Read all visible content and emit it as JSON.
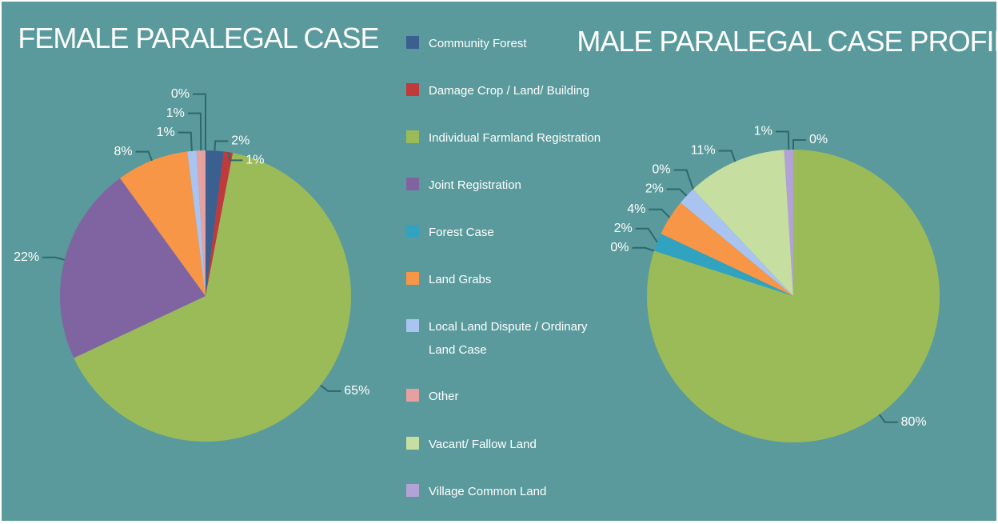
{
  "legend": [
    {
      "name": "Community Forest",
      "color": "#3b5f8f"
    },
    {
      "name": "Damage Crop / Land/ Building",
      "color": "#c0393b"
    },
    {
      "name": "Individual Farmland Registration",
      "color": "#9bbb59"
    },
    {
      "name": "Joint Registration",
      "color": "#8064a2"
    },
    {
      "name": "Forest Case",
      "color": "#31a2c0"
    },
    {
      "name": "Land Grabs",
      "color": "#f79646"
    },
    {
      "name": "Local Land Dispute / Ordinary Land Case",
      "color": "#a9c4f0"
    },
    {
      "name": "Other",
      "color": "#e6a0a0"
    },
    {
      "name": "Vacant/ Fallow Land",
      "color": "#c6dea0"
    },
    {
      "name": "Village Common Land",
      "color": "#b3a2d6"
    }
  ],
  "chart_data": [
    {
      "type": "pie",
      "title": "FEMALE PARALEGAL CASE",
      "values": [
        2,
        1,
        65,
        22,
        null,
        8,
        1,
        1,
        null,
        0
      ],
      "value_labels": [
        "2%",
        "1%",
        "65%",
        "22%",
        null,
        "8%",
        "1%",
        "1%",
        null,
        "0%"
      ]
    },
    {
      "type": "pie",
      "title": "MALE PARALEGAL CASE PROFILE",
      "values": [
        null,
        0,
        80,
        0,
        2,
        4,
        2,
        0,
        11,
        1
      ],
      "value_labels": [
        null,
        "0%",
        "80%",
        "0%",
        "2%",
        "4%",
        "2%",
        "0%",
        "11%",
        "1%"
      ]
    }
  ]
}
